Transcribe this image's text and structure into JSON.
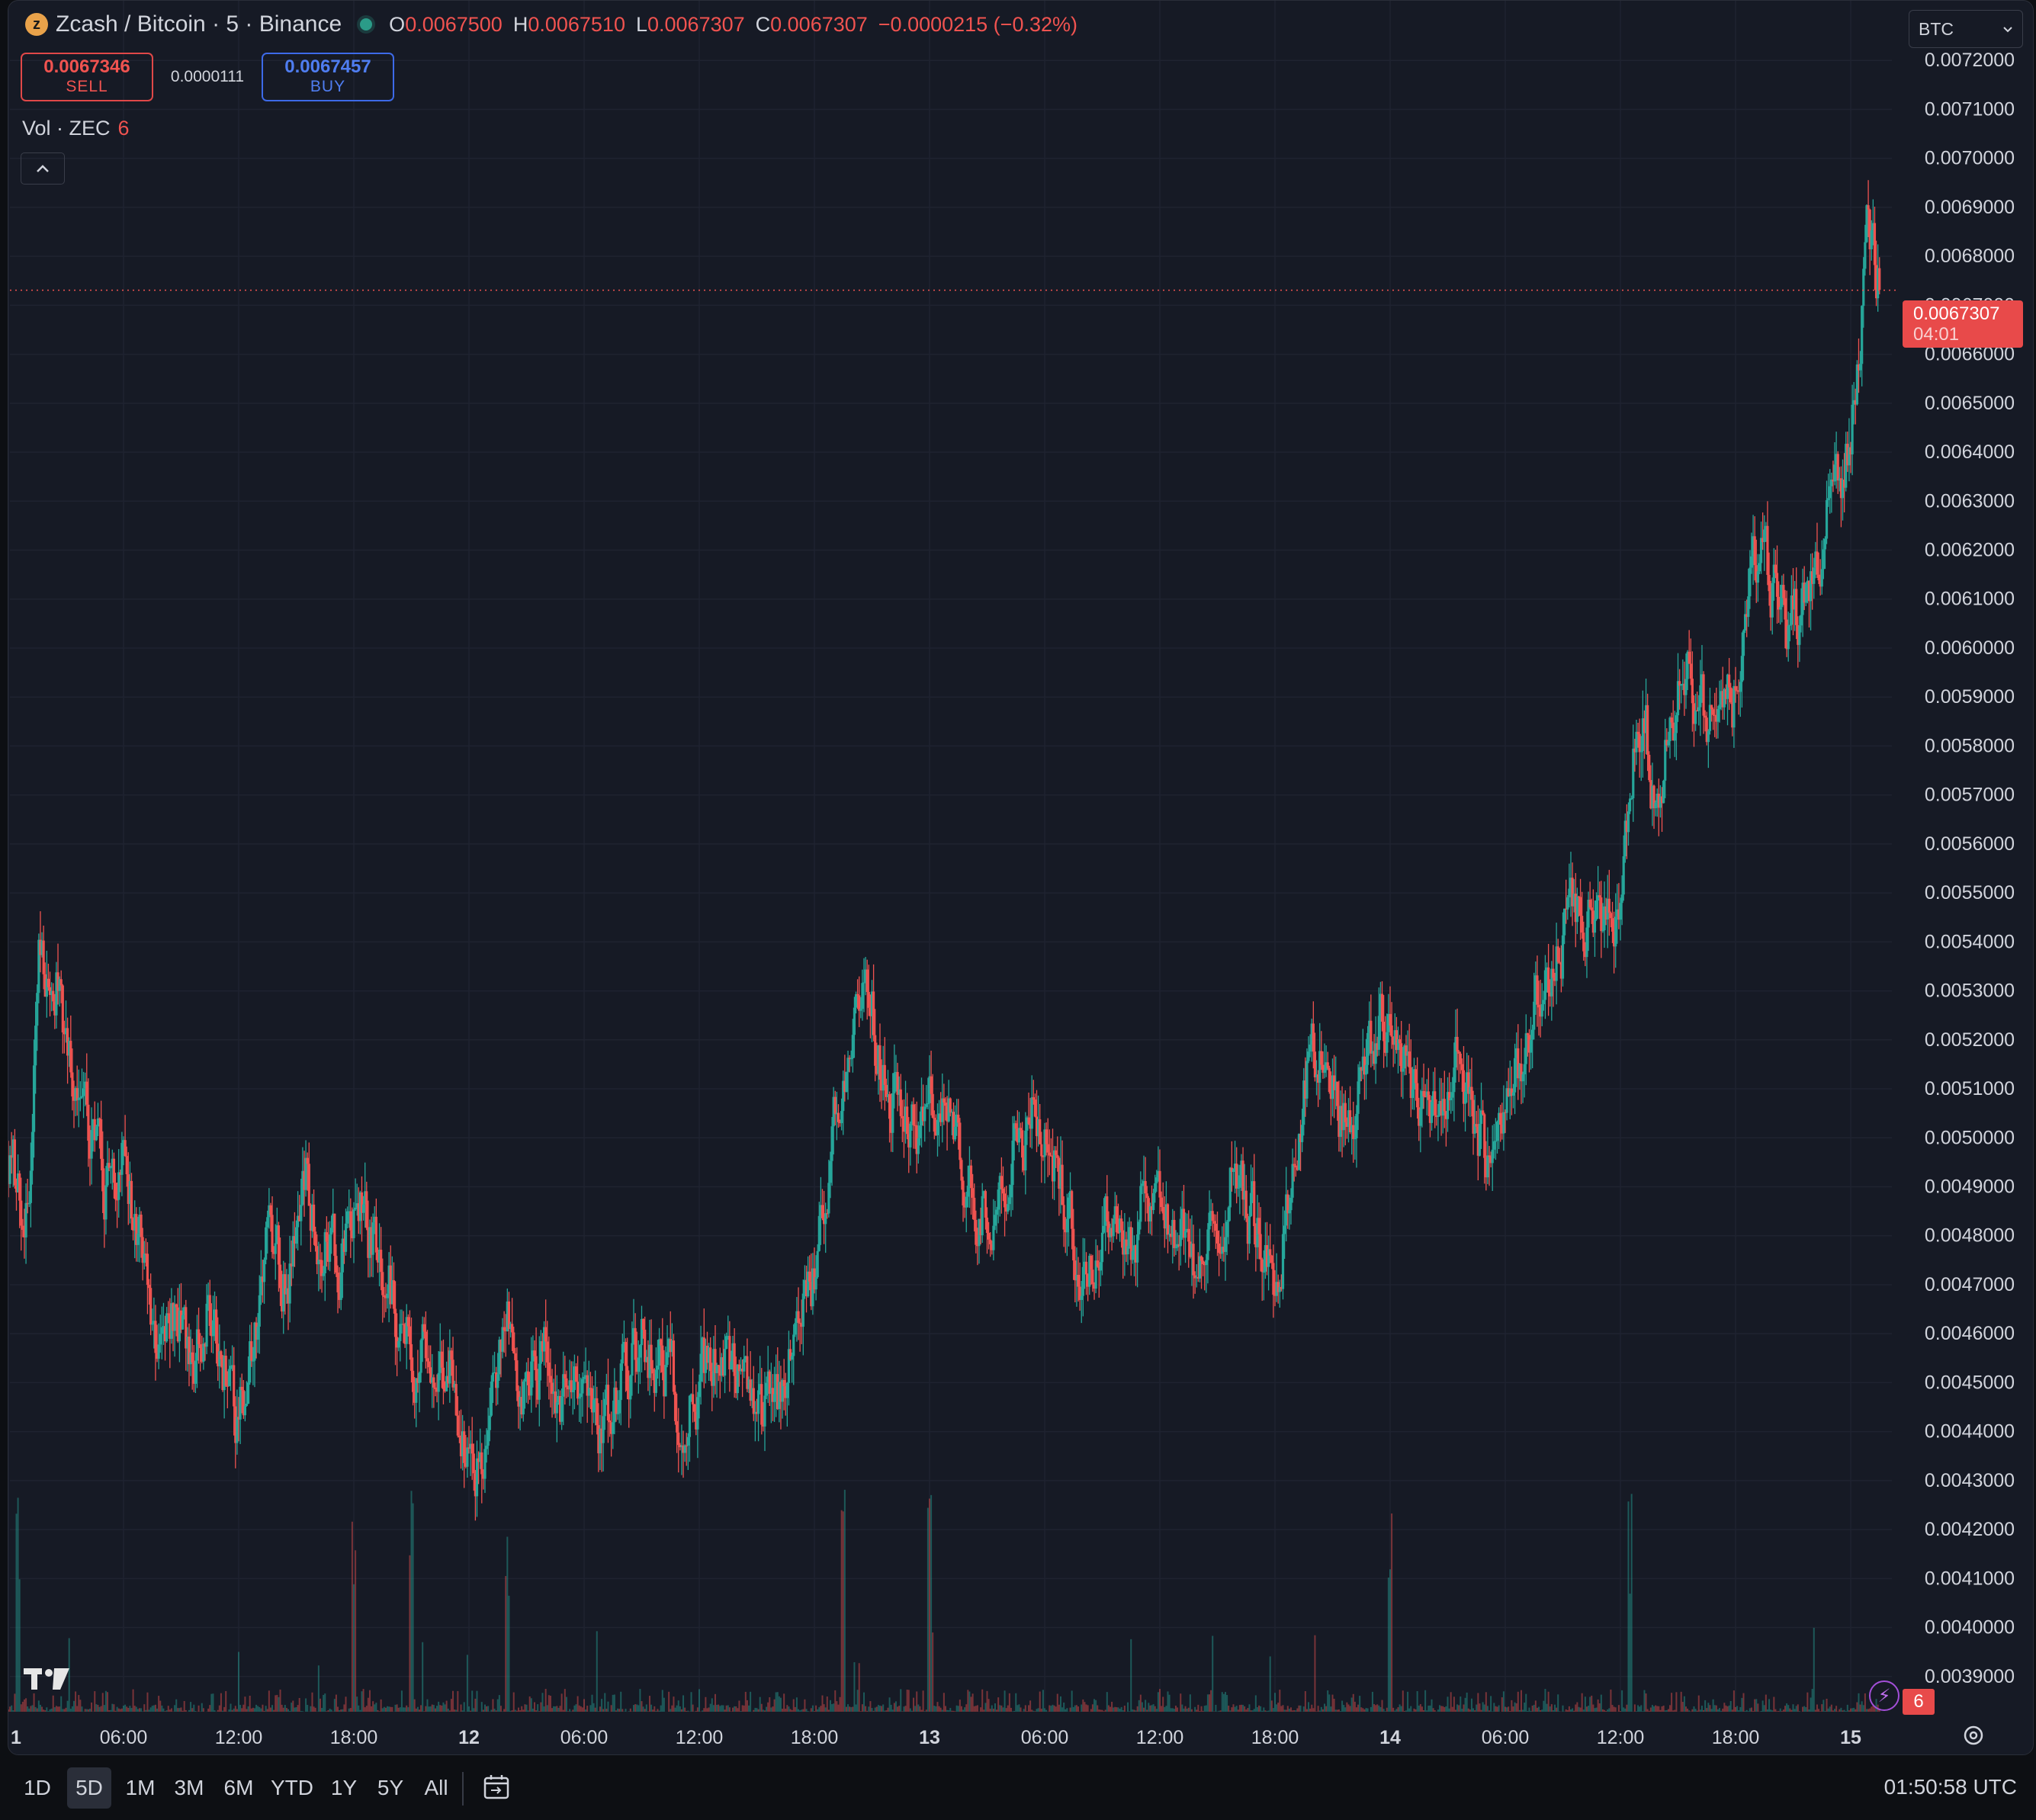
{
  "legend": {
    "logo_glyph": "z",
    "title": "Zcash / Bitcoin · 5 · Binance",
    "o_key": "O",
    "o_val": "0.0067500",
    "h_key": "H",
    "h_val": "0.0067510",
    "l_key": "L",
    "l_val": "0.0067307",
    "c_key": "C",
    "c_val": "0.0067307",
    "change": "−0.0000215 (−0.32%)"
  },
  "trade": {
    "sell_price": "0.0067346",
    "sell_label": "SELL",
    "spread": "0.0000111",
    "buy_price": "0.0067457",
    "buy_label": "BUY"
  },
  "volume": {
    "label": "Vol · ZEC",
    "value": "6"
  },
  "currency_select": {
    "value": "BTC"
  },
  "price_tag": {
    "price": "0.0067307",
    "countdown": "04:01"
  },
  "alerts": {
    "count": "6"
  },
  "colors": {
    "up": "#26a69a",
    "down": "#ef5350",
    "background": "#161a25",
    "grid": "#1f2330",
    "text": "#d1d4dc",
    "accent_buy": "#3d6ae8"
  },
  "icons": [
    "zcash-logo-icon",
    "collapse-chevron-up-icon",
    "chevron-down-icon",
    "tradingview-logo-icon",
    "alert-lightning-icon",
    "settings-icon",
    "date-range-calendar-icon"
  ],
  "range_buttons": [
    "1D",
    "5D",
    "1M",
    "3M",
    "6M",
    "YTD",
    "1Y",
    "5Y",
    "All"
  ],
  "active_range": "5D",
  "clock": "01:50:58 UTC",
  "chart_data": {
    "type": "candlestick",
    "y_axis": {
      "min": 0.0038,
      "max": 0.0073,
      "ticks": [
        "0.0072000",
        "0.0071000",
        "0.0070000",
        "0.0069000",
        "0.0068000",
        "0.0067000",
        "0.0066000",
        "0.0065000",
        "0.0064000",
        "0.0063000",
        "0.0062000",
        "0.0061000",
        "0.0060000",
        "0.0059000",
        "0.0058000",
        "0.0057000",
        "0.0056000",
        "0.0055000",
        "0.0054000",
        "0.0053000",
        "0.0052000",
        "0.0051000",
        "0.0050000",
        "0.0049000",
        "0.0048000",
        "0.0047000",
        "0.0046000",
        "0.0045000",
        "0.0044000",
        "0.0043000",
        "0.0042000",
        "0.0041000",
        "0.0040000",
        "0.0039000"
      ]
    },
    "x_axis": {
      "labels": [
        {
          "text": "1",
          "t": 0.0,
          "bold": true
        },
        {
          "text": "06:00",
          "t": 6.0,
          "bold": false
        },
        {
          "text": "12:00",
          "t": 12.0,
          "bold": false
        },
        {
          "text": "18:00",
          "t": 18.0,
          "bold": false
        },
        {
          "text": "12",
          "t": 24.0,
          "bold": true
        },
        {
          "text": "06:00",
          "t": 30.0,
          "bold": false
        },
        {
          "text": "12:00",
          "t": 36.0,
          "bold": false
        },
        {
          "text": "18:00",
          "t": 42.0,
          "bold": false
        },
        {
          "text": "13",
          "t": 48.0,
          "bold": true
        },
        {
          "text": "06:00",
          "t": 54.0,
          "bold": false
        },
        {
          "text": "12:00",
          "t": 60.0,
          "bold": false
        },
        {
          "text": "18:00",
          "t": 66.0,
          "bold": false
        },
        {
          "text": "14",
          "t": 72.0,
          "bold": true
        },
        {
          "text": "06:00",
          "t": 78.0,
          "bold": false
        },
        {
          "text": "12:00",
          "t": 84.0,
          "bold": false
        },
        {
          "text": "18:00",
          "t": 90.0,
          "bold": false
        },
        {
          "text": "15",
          "t": 96.0,
          "bold": true
        }
      ]
    },
    "last_price": 0.0067307,
    "price_path": [
      [
        0.0,
        0.00495
      ],
      [
        0.8,
        0.00485
      ],
      [
        1.3,
        0.00505
      ],
      [
        1.6,
        0.0055
      ],
      [
        2.0,
        0.0053
      ],
      [
        2.6,
        0.00535
      ],
      [
        3.0,
        0.0052
      ],
      [
        3.5,
        0.0051
      ],
      [
        4.0,
        0.00505
      ],
      [
        5.0,
        0.0049
      ],
      [
        6.0,
        0.00495
      ],
      [
        7.0,
        0.0048
      ],
      [
        7.6,
        0.0046
      ],
      [
        8.5,
        0.00465
      ],
      [
        9.5,
        0.00455
      ],
      [
        10.5,
        0.00465
      ],
      [
        11.5,
        0.0045
      ],
      [
        12.0,
        0.0044
      ],
      [
        12.8,
        0.0046
      ],
      [
        13.5,
        0.0048
      ],
      [
        14.5,
        0.0047
      ],
      [
        15.5,
        0.0049
      ],
      [
        16.5,
        0.0048
      ],
      [
        17.5,
        0.00475
      ],
      [
        18.5,
        0.00485
      ],
      [
        19.5,
        0.00475
      ],
      [
        20.5,
        0.0046
      ],
      [
        21.5,
        0.00455
      ],
      [
        22.5,
        0.0046
      ],
      [
        23.3,
        0.0045
      ],
      [
        24.0,
        0.00435
      ],
      [
        24.8,
        0.0043
      ],
      [
        25.2,
        0.00445
      ],
      [
        26.0,
        0.0046
      ],
      [
        27.0,
        0.0045
      ],
      [
        28.0,
        0.00455
      ],
      [
        29.0,
        0.00445
      ],
      [
        30.0,
        0.0045
      ],
      [
        31.0,
        0.0044
      ],
      [
        32.0,
        0.0045
      ],
      [
        33.0,
        0.0046
      ],
      [
        34.0,
        0.00455
      ],
      [
        35.0,
        0.00445
      ],
      [
        36.0,
        0.0045
      ],
      [
        37.0,
        0.00455
      ],
      [
        38.0,
        0.0045
      ],
      [
        39.0,
        0.0044
      ],
      [
        40.0,
        0.00445
      ],
      [
        41.0,
        0.0046
      ],
      [
        42.0,
        0.0047
      ],
      [
        42.6,
        0.0049
      ],
      [
        43.2,
        0.0051
      ],
      [
        44.0,
        0.0052
      ],
      [
        44.8,
        0.0053
      ],
      [
        45.5,
        0.00515
      ],
      [
        46.5,
        0.00505
      ],
      [
        47.5,
        0.005
      ],
      [
        48.5,
        0.0051
      ],
      [
        49.5,
        0.00495
      ],
      [
        50.5,
        0.00485
      ],
      [
        51.5,
        0.0049
      ],
      [
        52.5,
        0.005
      ],
      [
        53.5,
        0.00505
      ],
      [
        54.5,
        0.00495
      ],
      [
        55.5,
        0.0048
      ],
      [
        56.5,
        0.00475
      ],
      [
        57.5,
        0.00485
      ],
      [
        58.5,
        0.0048
      ],
      [
        59.5,
        0.0049
      ],
      [
        60.5,
        0.00485
      ],
      [
        61.5,
        0.00475
      ],
      [
        62.3,
        0.0047
      ],
      [
        63.0,
        0.00485
      ],
      [
        64.0,
        0.00495
      ],
      [
        65.0,
        0.0048
      ],
      [
        66.0,
        0.0047
      ],
      [
        66.8,
        0.0049
      ],
      [
        67.5,
        0.0051
      ],
      [
        68.5,
        0.0052
      ],
      [
        69.5,
        0.00505
      ],
      [
        70.5,
        0.0051
      ],
      [
        71.5,
        0.00525
      ],
      [
        72.5,
        0.0052
      ],
      [
        73.5,
        0.0051
      ],
      [
        74.5,
        0.00505
      ],
      [
        75.5,
        0.00515
      ],
      [
        76.5,
        0.005
      ],
      [
        77.3,
        0.00495
      ],
      [
        78.0,
        0.0051
      ],
      [
        79.0,
        0.0052
      ],
      [
        80.0,
        0.0053
      ],
      [
        81.0,
        0.0054
      ],
      [
        82.0,
        0.00545
      ],
      [
        83.0,
        0.0054
      ],
      [
        84.0,
        0.0055
      ],
      [
        84.8,
        0.0058
      ],
      [
        85.3,
        0.0059
      ],
      [
        85.8,
        0.00565
      ],
      [
        86.5,
        0.0058
      ],
      [
        87.3,
        0.006
      ],
      [
        88.0,
        0.0059
      ],
      [
        89.0,
        0.0058
      ],
      [
        90.0,
        0.0059
      ],
      [
        90.7,
        0.0061
      ],
      [
        91.3,
        0.0062
      ],
      [
        92.0,
        0.0061
      ],
      [
        92.8,
        0.00605
      ],
      [
        93.5,
        0.0061
      ],
      [
        94.2,
        0.00615
      ],
      [
        95.0,
        0.0063
      ],
      [
        95.8,
        0.0064
      ],
      [
        96.4,
        0.0066
      ],
      [
        96.8,
        0.00685
      ],
      [
        97.2,
        0.0068
      ],
      [
        97.5,
        0.0067307
      ]
    ],
    "volume_note": "volume histogram spikes on 12 00:30, 12 18:00, 12 21:00, 14 00:00, 14 12:30"
  }
}
